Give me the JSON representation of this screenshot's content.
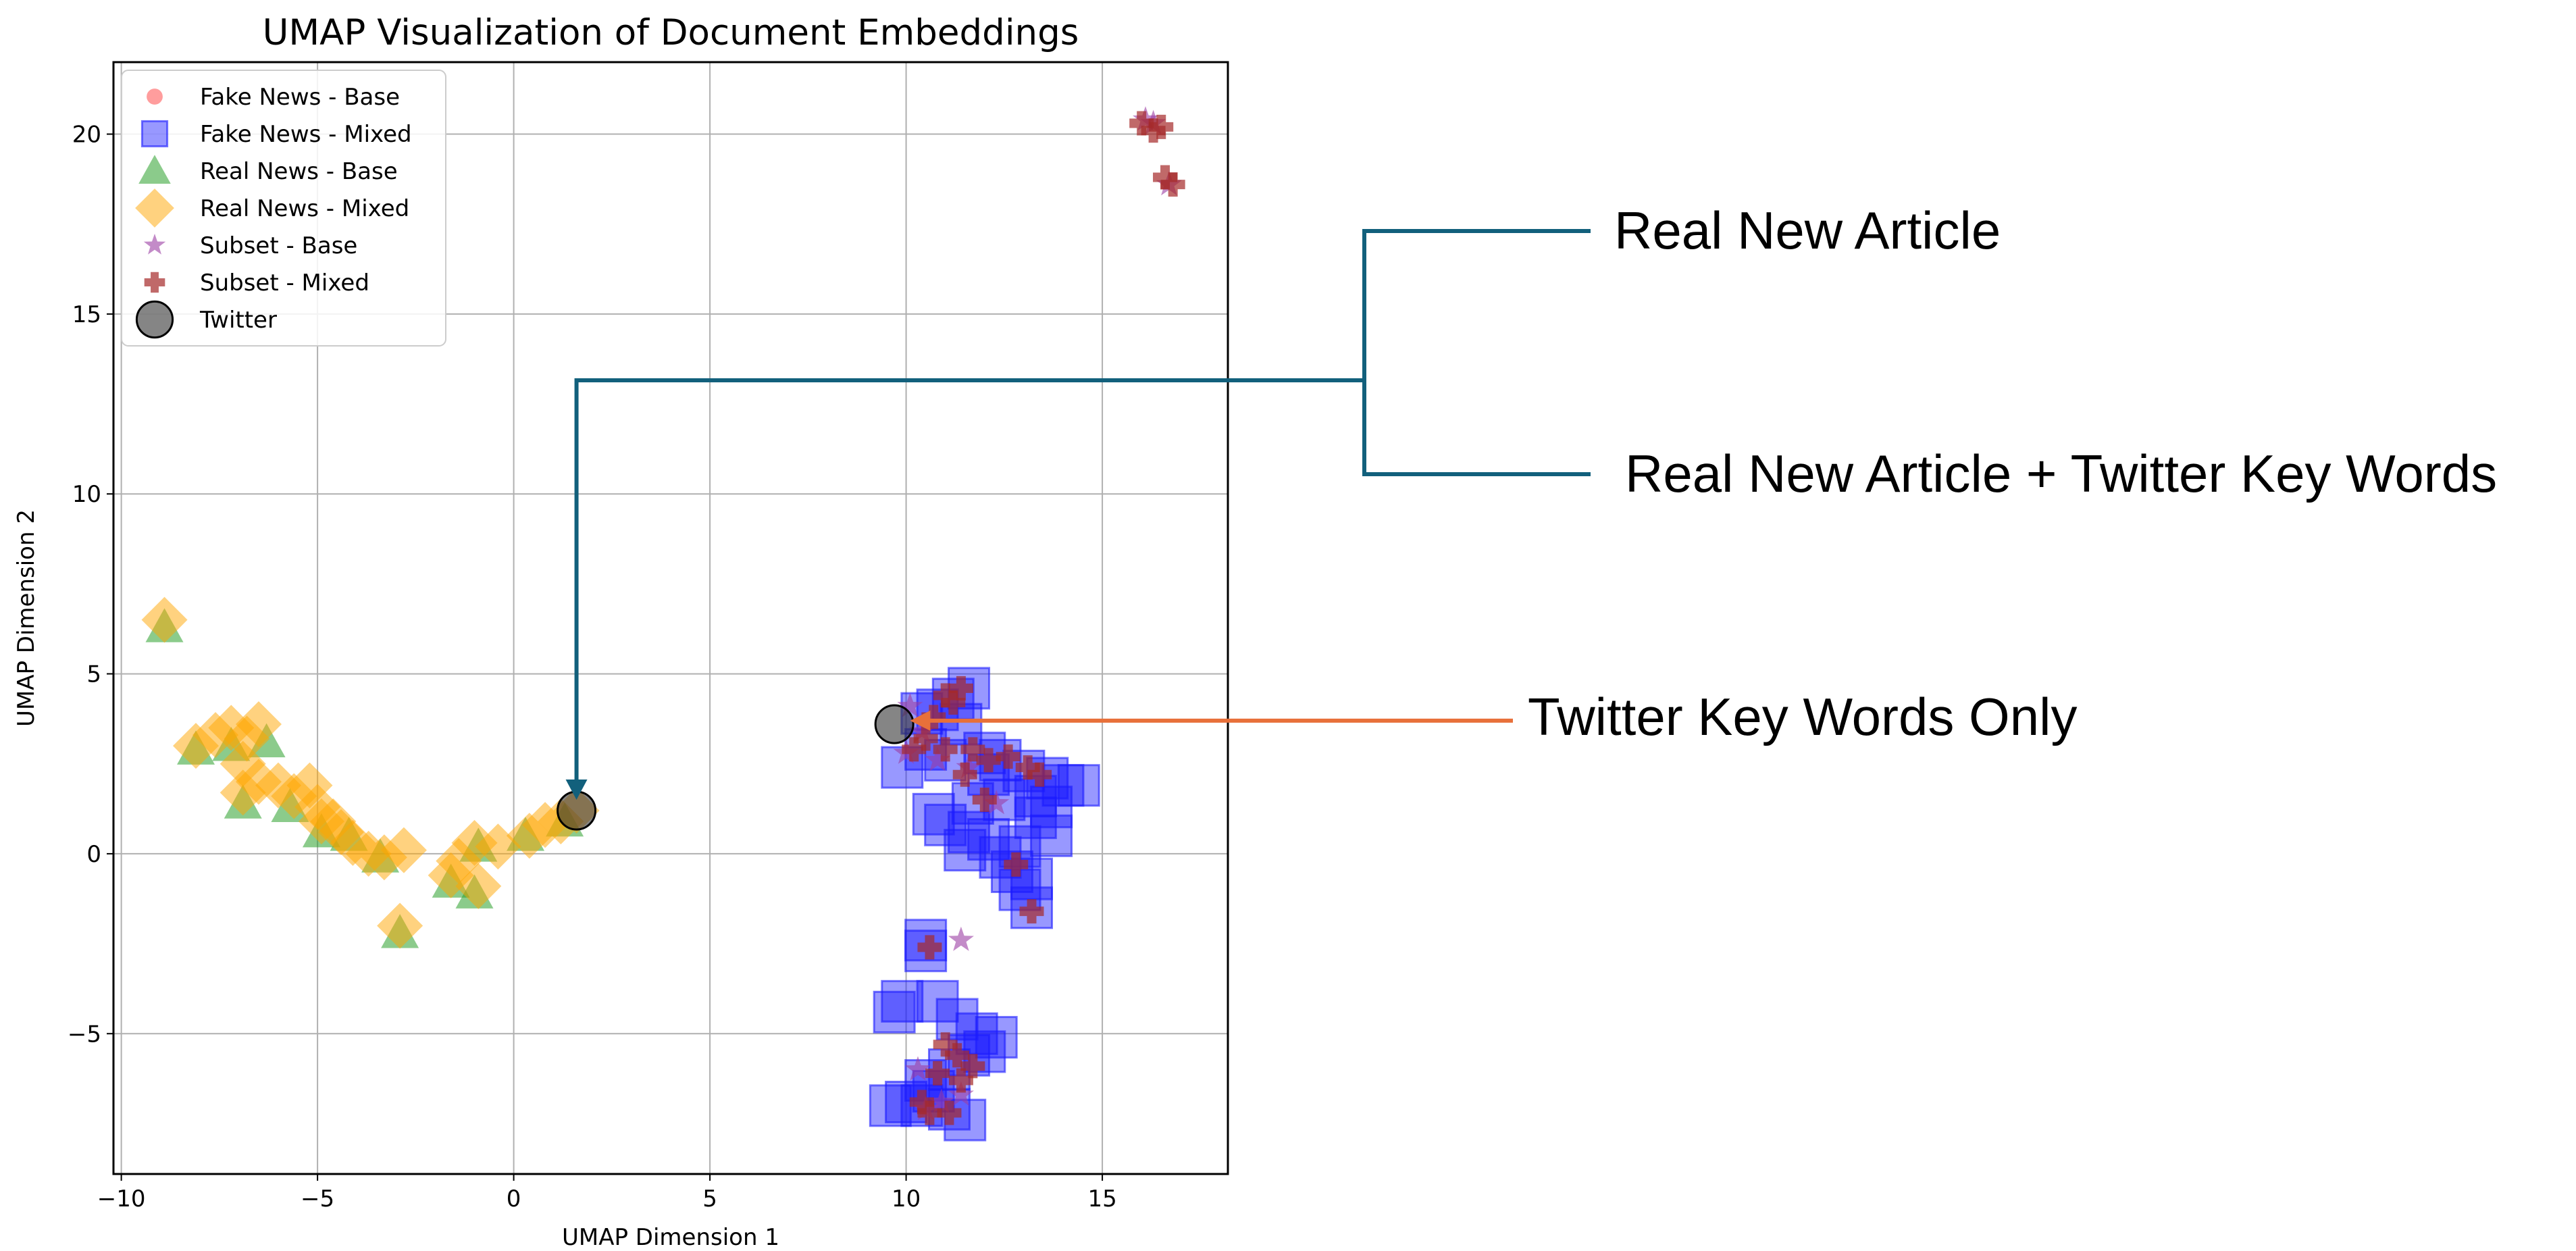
{
  "chart_data": {
    "type": "scatter",
    "title": "UMAP Visualization of Document Embeddings",
    "xlabel": "UMAP Dimension 1",
    "ylabel": "UMAP Dimension 2",
    "xlim": [
      -10.2,
      18.2
    ],
    "ylim": [
      -8.9,
      22
    ],
    "xticks": [
      -10,
      -5,
      0,
      5,
      10,
      15
    ],
    "yticks": [
      -5,
      0,
      5,
      10,
      15,
      20
    ],
    "grid": true,
    "legend_position": "upper-left",
    "series": [
      {
        "name": "Fake News - Base",
        "marker": "circle",
        "color": "#ff4d4d",
        "points": []
      },
      {
        "name": "Fake News - Mixed",
        "marker": "square",
        "color": "#1a1aff",
        "points": [
          [
            11.6,
            4.6
          ],
          [
            11.2,
            4.3
          ],
          [
            10.8,
            4.0
          ],
          [
            10.4,
            3.9
          ],
          [
            11.4,
            3.6
          ],
          [
            9.9,
            2.4
          ],
          [
            10.5,
            2.9
          ],
          [
            11.0,
            2.6
          ],
          [
            12.0,
            2.8
          ],
          [
            12.4,
            2.6
          ],
          [
            12.1,
            2.2
          ],
          [
            13.0,
            2.3
          ],
          [
            13.6,
            2.1
          ],
          [
            14.0,
            1.9
          ],
          [
            14.4,
            1.9
          ],
          [
            13.3,
            1.6
          ],
          [
            12.5,
            1.5
          ],
          [
            11.7,
            1.4
          ],
          [
            13.7,
            1.3
          ],
          [
            13.3,
            1.0
          ],
          [
            10.7,
            1.1
          ],
          [
            11.0,
            0.8
          ],
          [
            11.6,
            0.6
          ],
          [
            12.1,
            0.4
          ],
          [
            11.5,
            0.1
          ],
          [
            12.9,
            0.2
          ],
          [
            13.7,
            0.5
          ],
          [
            12.4,
            -0.1
          ],
          [
            12.7,
            -0.5
          ],
          [
            13.2,
            -0.7
          ],
          [
            12.9,
            -1.0
          ],
          [
            13.2,
            -1.5
          ],
          [
            10.5,
            -2.4
          ],
          [
            10.5,
            -2.7
          ],
          [
            9.9,
            -4.1
          ],
          [
            9.7,
            -4.4
          ],
          [
            10.8,
            -4.1
          ],
          [
            11.3,
            -4.6
          ],
          [
            11.8,
            -5.0
          ],
          [
            12.3,
            -5.1
          ],
          [
            11.6,
            -5.6
          ],
          [
            11.1,
            -6.0
          ],
          [
            10.5,
            -6.3
          ],
          [
            10.0,
            -6.9
          ],
          [
            9.6,
            -7.0
          ],
          [
            10.4,
            -7.0
          ],
          [
            11.1,
            -7.1
          ],
          [
            11.5,
            -7.4
          ],
          [
            10.7,
            -6.6
          ],
          [
            12.0,
            -5.5
          ]
        ]
      },
      {
        "name": "Real News - Base",
        "marker": "triangle",
        "color": "#2ca02c",
        "points": [
          [
            -8.9,
            6.3
          ],
          [
            -8.1,
            2.9
          ],
          [
            -7.2,
            3.0
          ],
          [
            -6.9,
            1.4
          ],
          [
            -6.3,
            3.1
          ],
          [
            -5.7,
            1.3
          ],
          [
            -4.9,
            0.6
          ],
          [
            -4.2,
            0.5
          ],
          [
            -3.4,
            -0.1
          ],
          [
            -2.9,
            -2.2
          ],
          [
            -1.6,
            -0.8
          ],
          [
            -1.0,
            -1.1
          ],
          [
            -0.9,
            0.2
          ],
          [
            0.3,
            0.5
          ],
          [
            1.3,
            0.9
          ]
        ]
      },
      {
        "name": "Real News - Mixed",
        "marker": "diamond",
        "color": "#ffa500",
        "points": [
          [
            -8.9,
            6.5
          ],
          [
            -8.1,
            3.0
          ],
          [
            -7.6,
            3.3
          ],
          [
            -7.2,
            3.5
          ],
          [
            -6.8,
            3.2
          ],
          [
            -6.5,
            3.6
          ],
          [
            -6.9,
            2.5
          ],
          [
            -6.5,
            2.0
          ],
          [
            -6.9,
            1.7
          ],
          [
            -6.0,
            1.9
          ],
          [
            -5.6,
            1.6
          ],
          [
            -5.2,
            1.9
          ],
          [
            -5.0,
            1.3
          ],
          [
            -4.6,
            0.9
          ],
          [
            -4.4,
            0.6
          ],
          [
            -4.9,
            0.9
          ],
          [
            -4.1,
            0.3
          ],
          [
            -3.7,
            0.0
          ],
          [
            -3.3,
            -0.1
          ],
          [
            -2.8,
            0.1
          ],
          [
            -2.9,
            -2.0
          ],
          [
            -1.6,
            -0.6
          ],
          [
            -1.4,
            -0.2
          ],
          [
            -1.0,
            0.3
          ],
          [
            -0.9,
            -0.9
          ],
          [
            -0.4,
            0.2
          ],
          [
            0.4,
            0.5
          ],
          [
            0.8,
            0.8
          ],
          [
            1.2,
            0.9
          ],
          [
            1.6,
            1.2
          ]
        ]
      },
      {
        "name": "Subset - Base",
        "marker": "star",
        "color": "#9b3ea3",
        "points": [
          [
            16.1,
            20.4
          ],
          [
            16.3,
            20.3
          ],
          [
            16.7,
            18.6
          ],
          [
            10.1,
            4.1
          ],
          [
            10.4,
            3.4
          ],
          [
            10.0,
            2.8
          ],
          [
            10.8,
            2.6
          ],
          [
            11.6,
            2.4
          ],
          [
            12.3,
            1.4
          ],
          [
            11.4,
            -2.4
          ],
          [
            10.3,
            -6.0
          ],
          [
            10.9,
            -6.9
          ],
          [
            11.4,
            -6.7
          ],
          [
            10.5,
            -7.1
          ]
        ]
      },
      {
        "name": "Subset - Mixed",
        "marker": "plus",
        "color": "#a52a2a",
        "points": [
          [
            16.0,
            20.3
          ],
          [
            16.3,
            20.1
          ],
          [
            16.5,
            20.2
          ],
          [
            16.6,
            18.8
          ],
          [
            16.8,
            18.6
          ],
          [
            11.0,
            4.4
          ],
          [
            11.4,
            4.6
          ],
          [
            11.2,
            4.2
          ],
          [
            10.7,
            3.8
          ],
          [
            10.5,
            3.2
          ],
          [
            10.2,
            2.9
          ],
          [
            11.0,
            2.9
          ],
          [
            11.7,
            2.9
          ],
          [
            12.1,
            2.6
          ],
          [
            12.6,
            2.7
          ],
          [
            11.5,
            2.2
          ],
          [
            12.0,
            1.5
          ],
          [
            13.1,
            2.4
          ],
          [
            13.4,
            2.2
          ],
          [
            12.8,
            -0.3
          ],
          [
            13.2,
            -1.6
          ],
          [
            10.6,
            -2.6
          ],
          [
            11.0,
            -5.3
          ],
          [
            11.3,
            -5.6
          ],
          [
            10.8,
            -6.1
          ],
          [
            11.4,
            -6.3
          ],
          [
            11.7,
            -5.9
          ],
          [
            10.4,
            -6.9
          ],
          [
            11.1,
            -7.2
          ],
          [
            10.6,
            -7.2
          ]
        ]
      },
      {
        "name": "Twitter",
        "marker": "large-circle",
        "color": "#333333",
        "points": [
          [
            9.7,
            3.6
          ],
          [
            1.6,
            1.2
          ]
        ]
      }
    ],
    "annotations": [
      {
        "text": "Real New Article",
        "connector": "bracket",
        "color": "#12607c"
      },
      {
        "text": "Real New Article + Twitter Key Words",
        "connector": "bracket",
        "color": "#12607c",
        "arrow_to": [
          1.6,
          1.5
        ]
      },
      {
        "text": "Twitter Key Words Only",
        "connector": "arrow",
        "color": "#e8703a",
        "arrow_to": [
          10.1,
          3.7
        ]
      }
    ]
  }
}
